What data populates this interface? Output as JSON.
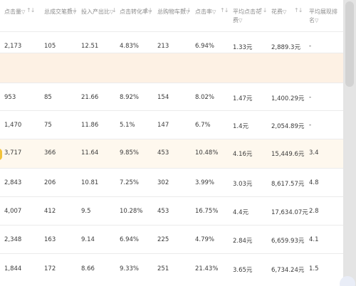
{
  "headers": [
    {
      "title": "点击量",
      "filter": "▽",
      "sort": "↑↓"
    },
    {
      "title": "总成交笔数",
      "filter": "▽",
      "sort": "↑↓"
    },
    {
      "title": "投入产出比",
      "filter": "▽",
      "sort": "↓"
    },
    {
      "title": "点击转化率",
      "filter": "▽",
      "sort": "↑↓"
    },
    {
      "title": "总购物车数",
      "filter": "▽",
      "sort": "↑↓"
    },
    {
      "title": "点击率",
      "filter": "▽",
      "sort": "↑↓"
    },
    {
      "title": "平均点击花费",
      "filter": "▽",
      "sort": "↑↓"
    },
    {
      "title": "花费",
      "filter": "▽",
      "sort": "↑↓"
    },
    {
      "title": "平均展现排名",
      "filter": "▽",
      "sort": ""
    }
  ],
  "rows": [
    {
      "cells": [
        "2,173",
        "105",
        "12.51",
        "4.83%",
        "213",
        "6.94%",
        "1.33元",
        "2,889.3元",
        "-"
      ]
    },
    {
      "group": true,
      "cells": []
    },
    {
      "cells": [
        "953",
        "85",
        "21.66",
        "8.92%",
        "154",
        "8.02%",
        "1.47元",
        "1,400.29元",
        "-"
      ]
    },
    {
      "cells": [
        "1,470",
        "75",
        "11.86",
        "5.1%",
        "147",
        "6.7%",
        "1.4元",
        "2,054.89元",
        "-"
      ]
    },
    {
      "highlight": true,
      "cells": [
        "3,717",
        "366",
        "11.64",
        "9.85%",
        "453",
        "10.48%",
        "4.16元",
        "15,449.6元",
        "3.4"
      ]
    },
    {
      "cells": [
        "2,843",
        "206",
        "10.81",
        "7.25%",
        "302",
        "3.99%",
        "3.03元",
        "8,617.57元",
        "4.8"
      ]
    },
    {
      "cells": [
        "4,007",
        "412",
        "9.5",
        "10.28%",
        "453",
        "16.75%",
        "4.4元",
        "17,634.07元",
        "2.8"
      ]
    },
    {
      "cells": [
        "2,348",
        "163",
        "9.14",
        "6.94%",
        "225",
        "4.79%",
        "2.84元",
        "6,659.93元",
        "4.1"
      ]
    },
    {
      "cells": [
        "1,844",
        "172",
        "8.66",
        "9.33%",
        "251",
        "21.43%",
        "3.65元",
        "6,734.24元",
        "1.5"
      ]
    }
  ]
}
